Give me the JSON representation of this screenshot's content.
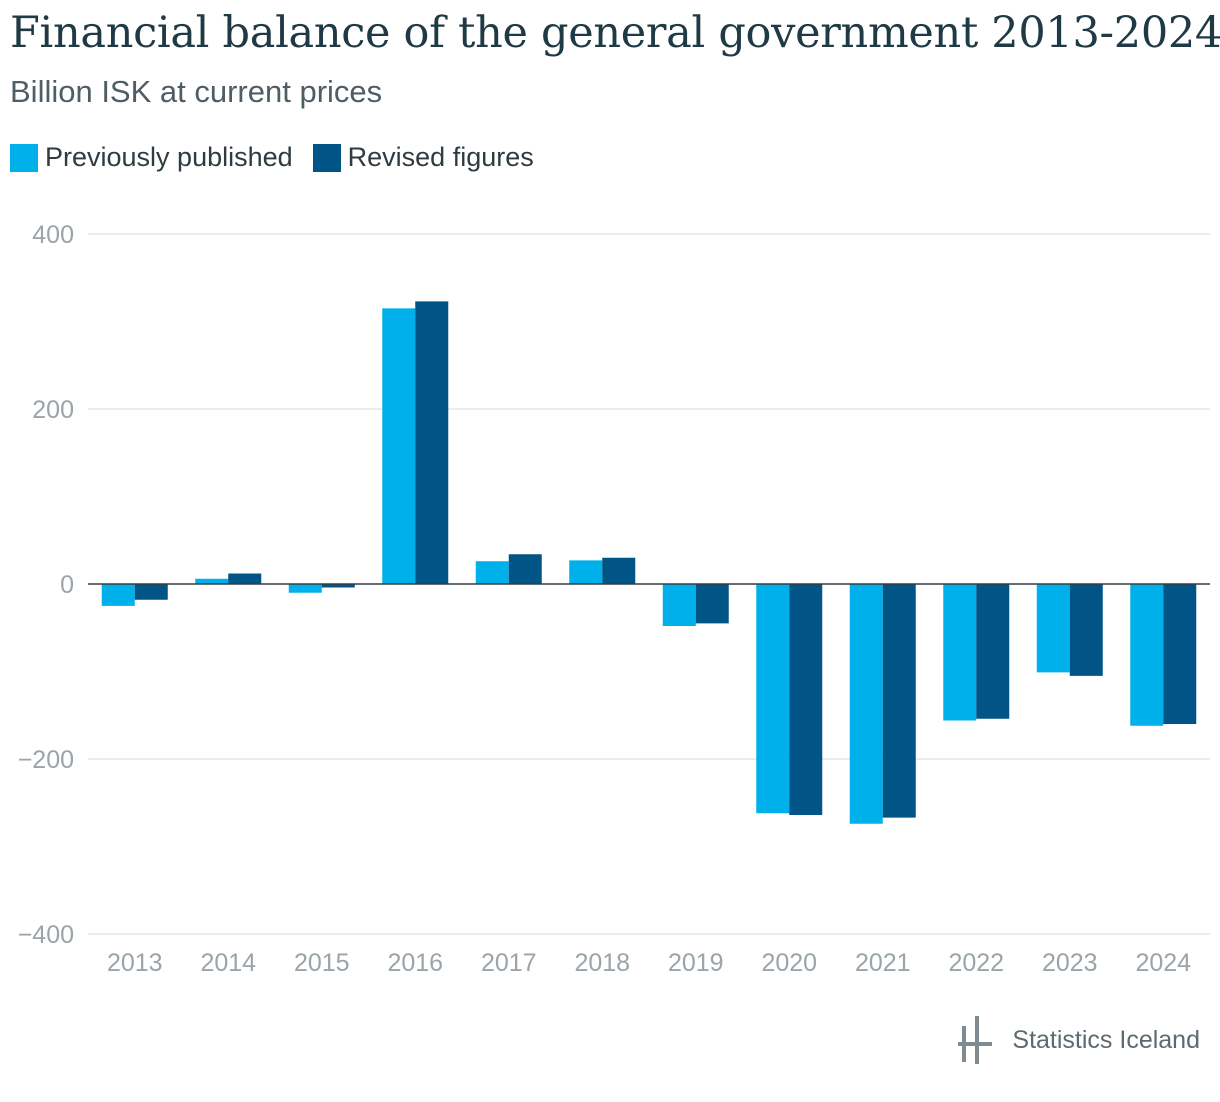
{
  "header": {
    "title": "Financial balance of the general government 2013-2024",
    "subtitle": "Billion ISK at current prices"
  },
  "legend": {
    "items": [
      {
        "label": "Previously published",
        "color": "#00b0ea"
      },
      {
        "label": "Revised figures",
        "color": "#005486"
      }
    ]
  },
  "footer": {
    "brand": "Statistics Iceland",
    "logo_icon": "statistics-iceland-logo-icon"
  },
  "chart_data": {
    "type": "bar",
    "title": "Financial balance of the general government 2013-2024",
    "subtitle": "Billion ISK at current prices",
    "categories": [
      "2013",
      "2014",
      "2015",
      "2016",
      "2017",
      "2018",
      "2019",
      "2020",
      "2021",
      "2022",
      "2023",
      "2024"
    ],
    "series": [
      {
        "name": "Previously published",
        "color": "#00b0ea",
        "values": [
          -25,
          6,
          -10,
          315,
          26,
          27,
          -48,
          -262,
          -274,
          -156,
          -101,
          -162
        ]
      },
      {
        "name": "Revised figures",
        "color": "#005486",
        "values": [
          -18,
          12,
          -4,
          323,
          34,
          30,
          -45,
          -264,
          -267,
          -154,
          -105,
          -160
        ]
      }
    ],
    "ylim": [
      -400,
      400
    ],
    "yticks": [
      400,
      200,
      0,
      -200,
      -400
    ],
    "ytick_labels": [
      "400",
      "200",
      "0",
      "−200",
      "−400"
    ],
    "xlabel": "",
    "ylabel": "",
    "grid": true,
    "legend_position": "top-left"
  }
}
